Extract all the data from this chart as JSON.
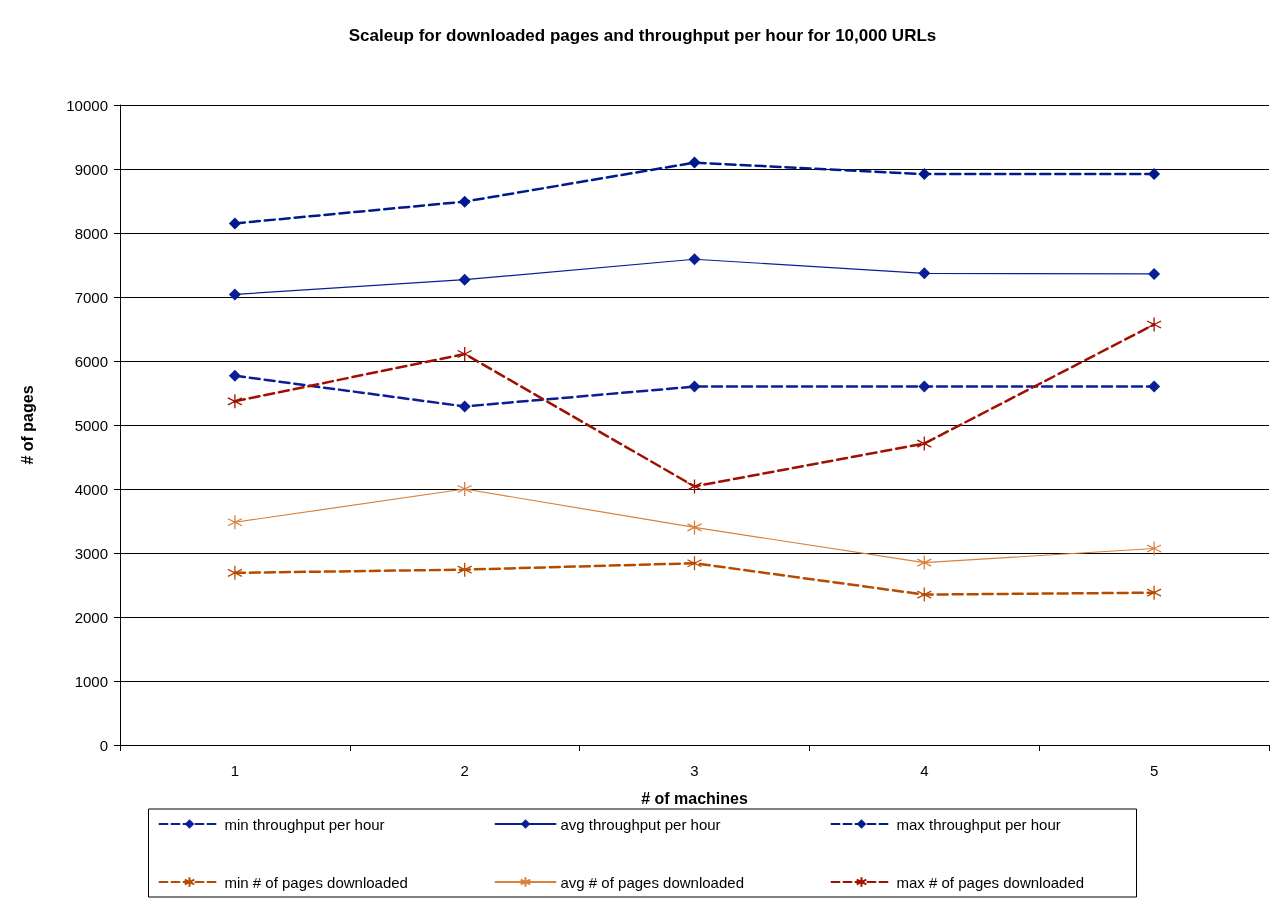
{
  "chart_data": {
    "type": "line",
    "title": "Scaleup for downloaded pages and throughput per hour for 10,000 URLs",
    "xlabel": "# of machines",
    "ylabel": "# of pages",
    "categories": [
      "1",
      "2",
      "3",
      "4",
      "5"
    ],
    "series": [
      {
        "name": "min throughput per hour",
        "color": "#0a1e96",
        "marker": "diamond",
        "line_style": "dashed",
        "values": [
          5770,
          5290,
          5600,
          5600,
          5600
        ]
      },
      {
        "name": "avg throughput per hour",
        "color": "#0a1e96",
        "marker": "diamond",
        "line_style": "solid",
        "values": [
          7040,
          7270,
          7590,
          7370,
          7360
        ]
      },
      {
        "name": "max throughput per hour",
        "color": "#001a8c",
        "marker": "diamond",
        "line_style": "dashed",
        "values": [
          8150,
          8490,
          9100,
          8920,
          8920
        ]
      },
      {
        "name": "min # of pages downloaded",
        "color": "#b84a00",
        "marker": "cross",
        "line_style": "dashed",
        "values": [
          2690,
          2740,
          2840,
          2350,
          2380
        ]
      },
      {
        "name": "avg # of pages downloaded",
        "color": "#d9813c",
        "marker": "cross",
        "line_style": "solid",
        "values": [
          3480,
          4000,
          3400,
          2850,
          3070
        ]
      },
      {
        "name": "max # of pages downloaded",
        "color": "#a01000",
        "marker": "cross",
        "line_style": "dashed",
        "values": [
          5370,
          6110,
          4040,
          4710,
          6570
        ]
      }
    ],
    "ylim": [
      0,
      10000
    ],
    "yticks": [
      0,
      1000,
      2000,
      3000,
      4000,
      5000,
      6000,
      7000,
      8000,
      9000,
      10000
    ],
    "grid": "y",
    "legend": "bottom"
  }
}
